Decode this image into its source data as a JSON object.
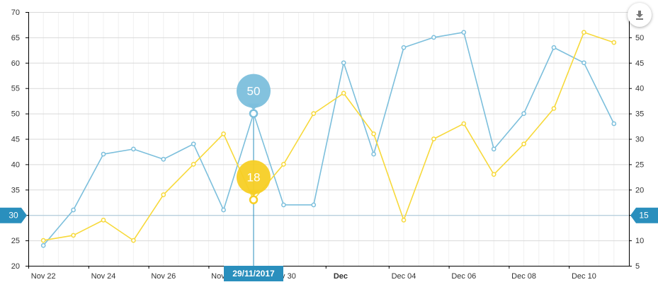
{
  "chart_data": {
    "type": "line",
    "x": [
      "Nov 22",
      "Nov 23",
      "Nov 24",
      "Nov 25",
      "Nov 26",
      "Nov 27",
      "Nov 28",
      "Nov 29",
      "Nov 30",
      "Dec 01",
      "Dec 02",
      "Dec 03",
      "Dec 04",
      "Dec 05",
      "Dec 06",
      "Dec 07",
      "Dec 08",
      "Dec 09",
      "Dec 10",
      "Dec 11"
    ],
    "x_tick_labels": [
      {
        "index": 0,
        "label": "Nov 22"
      },
      {
        "index": 2,
        "label": "Nov 24"
      },
      {
        "index": 4,
        "label": "Nov 26"
      },
      {
        "index": 6,
        "label": "Nov 28"
      },
      {
        "index": 8,
        "label": "Nov 30"
      },
      {
        "index": 9.9,
        "label": "Dec",
        "bold": true
      },
      {
        "index": 12,
        "label": "Dec 04"
      },
      {
        "index": 14,
        "label": "Dec 06"
      },
      {
        "index": 16,
        "label": "Dec 08"
      },
      {
        "index": 18,
        "label": "Dec 10"
      }
    ],
    "series": [
      {
        "axis": "left",
        "color": "#7cbfdc",
        "values": [
          24,
          31,
          42,
          43,
          41,
          44,
          31,
          50,
          32,
          32,
          60,
          42,
          63,
          65,
          66,
          43,
          50,
          63,
          60,
          48
        ]
      },
      {
        "axis": "right",
        "color": "#f7d93a",
        "values": [
          10,
          11,
          14,
          10,
          19,
          25,
          31,
          18,
          25,
          35,
          39,
          31,
          14,
          30,
          33,
          23,
          29,
          36,
          51,
          49
        ]
      }
    ],
    "y_left": {
      "min": 20,
      "max": 70,
      "step": 5
    },
    "y_right": {
      "min": 5,
      "max": 55,
      "step": 5
    },
    "grid": true,
    "cursor": {
      "index": 7,
      "date_label": "29/11/2017"
    },
    "guide": {
      "left_label": "30",
      "right_label": "15",
      "color": "#2a8fbd"
    },
    "balloons": [
      {
        "series": 0,
        "text": "50",
        "color": "#7cbfdc"
      },
      {
        "series": 1,
        "text": "18",
        "color": "#f7cf25"
      }
    ]
  },
  "export": {
    "icon": "download-icon"
  }
}
